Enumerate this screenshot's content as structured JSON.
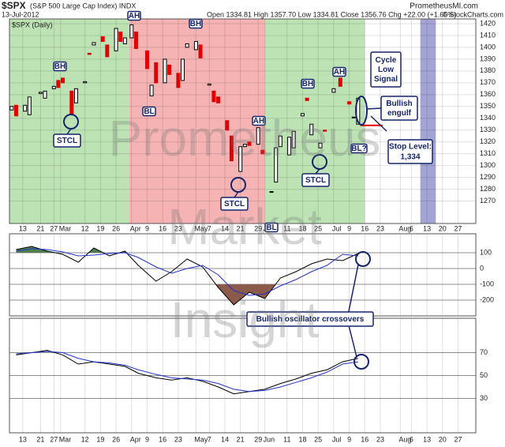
{
  "header": {
    "symbol": "$SPX",
    "name": "(S&P 500 Large Cap Index) INDX",
    "date": "13-Jul-2012",
    "ohlc": "Open 1334.81 High 1357.70 Low 1334.81 Close 1356.76 Chg +22.00 (+1.65%)",
    "copyright": "© StockCharts.com",
    "site": "PrometheusMI.com"
  },
  "watermark": [
    "Prometheus",
    "Market",
    "Insight"
  ],
  "chart_data": [
    {
      "type": "candlestick",
      "panel_label": "$SPX (Daily)",
      "x": [
        "2012-02-08",
        "2012-02-10",
        "2012-02-14",
        "2012-02-16",
        "2012-02-21",
        "2012-02-23",
        "2012-02-27",
        "2012-02-29",
        "2012-03-02",
        "2012-03-06",
        "2012-03-08",
        "2012-03-12",
        "2012-03-14",
        "2012-03-16",
        "2012-03-20",
        "2012-03-22",
        "2012-03-26",
        "2012-03-28",
        "2012-03-30",
        "2012-04-02",
        "2012-04-04",
        "2012-04-09",
        "2012-04-11",
        "2012-04-13",
        "2012-04-17",
        "2012-04-19",
        "2012-04-23",
        "2012-04-25",
        "2012-04-27",
        "2012-05-01",
        "2012-05-03",
        "2012-05-07",
        "2012-05-09",
        "2012-05-11",
        "2012-05-15",
        "2012-05-17",
        "2012-05-21",
        "2012-05-23",
        "2012-05-25",
        "2012-05-29",
        "2012-05-31",
        "2012-06-04",
        "2012-06-06",
        "2012-06-08",
        "2012-06-12",
        "2012-06-14",
        "2012-06-18",
        "2012-06-20",
        "2012-06-22",
        "2012-06-26",
        "2012-06-28",
        "2012-07-02",
        "2012-07-05",
        "2012-07-09",
        "2012-07-11",
        "2012-07-13"
      ],
      "open": [
        1347,
        1351,
        1346,
        1343,
        1361,
        1357,
        1365,
        1372,
        1374,
        1363,
        1353,
        1370,
        1395,
        1402,
        1409,
        1402,
        1397,
        1413,
        1403,
        1408,
        1413,
        1397,
        1359,
        1387,
        1370,
        1385,
        1378,
        1372,
        1400,
        1398,
        1402,
        1368,
        1363,
        1358,
        1338,
        1325,
        1295,
        1316,
        1320,
        1318,
        1313,
        1278,
        1286,
        1316,
        1309,
        1315,
        1342,
        1357,
        1326,
        1315,
        1330,
        1362,
        1374,
        1354,
        1341,
        1335
      ],
      "close": [
        1350,
        1342,
        1351,
        1358,
        1362,
        1363,
        1367,
        1366,
        1370,
        1343,
        1365,
        1371,
        1394,
        1404,
        1405,
        1392,
        1416,
        1405,
        1408,
        1419,
        1399,
        1382,
        1368,
        1370,
        1390,
        1377,
        1366,
        1390,
        1403,
        1405,
        1391,
        1369,
        1354,
        1353,
        1330,
        1304,
        1316,
        1318,
        1317,
        1332,
        1310,
        1278,
        1315,
        1325,
        1324,
        1329,
        1344,
        1355,
        1335,
        1319,
        1329,
        1365,
        1367,
        1352,
        1341,
        1357
      ],
      "up_color": "#000000",
      "down_color": "#e00000",
      "xlim": [
        "2012-02-07",
        "2012-09-04"
      ],
      "xticks": [
        {
          "value": "2012-02-13",
          "label": "13"
        },
        {
          "value": "2012-02-21",
          "label": "21"
        },
        {
          "value": "2012-02-27",
          "label": "27"
        },
        {
          "value": "2012-03-01",
          "label": "Mar"
        },
        {
          "value": "2012-03-12",
          "label": "12"
        },
        {
          "value": "2012-03-19",
          "label": "19"
        },
        {
          "value": "2012-03-26",
          "label": "26"
        },
        {
          "value": "2012-04-02",
          "label": "Apr"
        },
        {
          "value": "2012-04-09",
          "label": "9"
        },
        {
          "value": "2012-04-16",
          "label": "16"
        },
        {
          "value": "2012-04-23",
          "label": "23"
        },
        {
          "value": "2012-05-01",
          "label": "May"
        },
        {
          "value": "2012-05-07",
          "label": "7"
        },
        {
          "value": "2012-05-14",
          "label": "14"
        },
        {
          "value": "2012-05-21",
          "label": "21"
        },
        {
          "value": "2012-05-29",
          "label": "29"
        },
        {
          "value": "2012-06-01",
          "label": "Jun"
        },
        {
          "value": "2012-06-11",
          "label": "11"
        },
        {
          "value": "2012-06-18",
          "label": "18"
        },
        {
          "value": "2012-06-25",
          "label": "25"
        },
        {
          "value": "2012-07-02",
          "label": "Jul"
        },
        {
          "value": "2012-07-09",
          "label": "9"
        },
        {
          "value": "2012-07-16",
          "label": "16"
        },
        {
          "value": "2012-07-23",
          "label": "23"
        },
        {
          "value": "2012-08-01",
          "label": "Aug"
        },
        {
          "value": "2012-08-06",
          "label": "6"
        },
        {
          "value": "2012-08-13",
          "label": "13"
        },
        {
          "value": "2012-08-20",
          "label": "20"
        },
        {
          "value": "2012-08-27",
          "label": "27"
        }
      ],
      "ylim": [
        1251,
        1424
      ],
      "yticks": [
        1270,
        1280,
        1290,
        1300,
        1310,
        1320,
        1330,
        1340,
        1350,
        1360,
        1370,
        1380,
        1390,
        1400,
        1410,
        1420
      ],
      "regions": [
        {
          "start": "2012-02-07",
          "end": "2012-04-01",
          "color": "#bde3b4"
        },
        {
          "start": "2012-04-01",
          "end": "2012-06-01",
          "color": "#f6b3b3"
        },
        {
          "start": "2012-06-01",
          "end": "2012-07-16",
          "color": "#bde3b4"
        },
        {
          "start": "2012-08-10",
          "end": "2012-08-17",
          "color": "#a3a3d6"
        }
      ],
      "annotations": [
        {
          "lines": [
            "AH"
          ]
        },
        {
          "lines": [
            "BH"
          ]
        },
        {
          "lines": [
            "BH"
          ]
        },
        {
          "lines": [
            "BL"
          ]
        },
        {
          "lines": [
            "AH"
          ]
        },
        {
          "lines": [
            "BL"
          ]
        },
        {
          "lines": [
            "BH"
          ]
        },
        {
          "lines": [
            "AH"
          ]
        },
        {
          "lines": [
            "BL?"
          ]
        },
        {
          "lines": [
            "STCL"
          ]
        },
        {
          "lines": [
            "STCL"
          ]
        },
        {
          "lines": [
            "STCL"
          ]
        },
        {
          "lines": [
            "Cycle",
            "Low",
            "Signal"
          ]
        },
        {
          "lines": [
            "Bullish",
            "engulf"
          ]
        },
        {
          "lines": [
            "Bullish oscillator crossovers"
          ]
        }
      ],
      "stop_level": {
        "title": "Stop Level:",
        "value": 1334,
        "label": "1,334",
        "color": "#e00000",
        "from": "2012-07-14",
        "to": "2012-07-24"
      }
    },
    {
      "type": "line",
      "x": [
        "2012-02-10",
        "2012-02-17",
        "2012-02-24",
        "2012-03-02",
        "2012-03-09",
        "2012-03-16",
        "2012-03-23",
        "2012-03-30",
        "2012-04-05",
        "2012-04-13",
        "2012-04-20",
        "2012-04-27",
        "2012-05-04",
        "2012-05-11",
        "2012-05-18",
        "2012-05-25",
        "2012-06-01",
        "2012-06-08",
        "2012-06-15",
        "2012-06-22",
        "2012-06-29",
        "2012-07-06",
        "2012-07-13"
      ],
      "series": [
        {
          "color": "#000000",
          "values": [
            120,
            140,
            110,
            90,
            40,
            130,
            80,
            110,
            20,
            -80,
            -20,
            60,
            10,
            -120,
            -230,
            -150,
            -190,
            -60,
            -20,
            30,
            60,
            50,
            95
          ]
        },
        {
          "color": "#2233cc",
          "values": [
            110,
            125,
            120,
            105,
            80,
            85,
            95,
            100,
            70,
            10,
            -30,
            0,
            20,
            -40,
            -140,
            -170,
            -160,
            -110,
            -70,
            -20,
            20,
            90,
            80
          ]
        }
      ],
      "fill_above": {
        "value": 100,
        "color": "#4f7f4f"
      },
      "fill_below": {
        "value": -100,
        "color": "#8c5a4a"
      },
      "ylim": [
        -300,
        220
      ],
      "yticks": [
        100,
        0,
        -100,
        -200
      ]
    },
    {
      "type": "line",
      "x": [
        "2012-02-10",
        "2012-02-17",
        "2012-02-24",
        "2012-03-02",
        "2012-03-09",
        "2012-03-16",
        "2012-03-23",
        "2012-03-30",
        "2012-04-05",
        "2012-04-13",
        "2012-04-20",
        "2012-04-27",
        "2012-05-04",
        "2012-05-11",
        "2012-05-18",
        "2012-05-25",
        "2012-06-01",
        "2012-06-08",
        "2012-06-15",
        "2012-06-22",
        "2012-06-29",
        "2012-07-06",
        "2012-07-13"
      ],
      "series": [
        {
          "color": "#000000",
          "values": [
            68,
            70,
            72,
            68,
            60,
            62,
            60,
            58,
            52,
            48,
            46,
            48,
            45,
            40,
            34,
            36,
            38,
            43,
            47,
            52,
            55,
            62,
            65
          ]
        },
        {
          "color": "#2233cc",
          "values": [
            69,
            70,
            71,
            70,
            65,
            62,
            61,
            59,
            55,
            51,
            48,
            47,
            46,
            43,
            38,
            36,
            37,
            40,
            44,
            48,
            53,
            60,
            62
          ]
        }
      ],
      "ylim": [
        0,
        100
      ],
      "yticks": [
        70,
        50,
        30
      ]
    }
  ]
}
